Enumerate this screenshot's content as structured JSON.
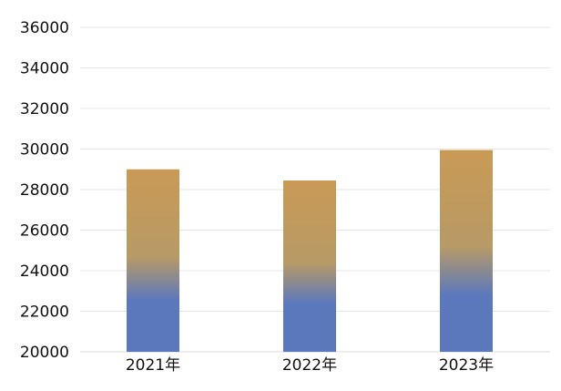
{
  "chart_data": {
    "type": "bar",
    "categories": [
      "2021年",
      "2022年",
      "2023年"
    ],
    "values": [
      29000,
      28450,
      29950
    ],
    "title": "",
    "xlabel": "",
    "ylabel": "",
    "ylim": [
      20000,
      36000
    ],
    "yticks": [
      20000,
      22000,
      24000,
      26000,
      28000,
      30000,
      32000,
      34000,
      36000
    ],
    "grid": true,
    "legend": "none",
    "bar_gradient": {
      "top_color": "#c99a55",
      "mid_color": "#b79a66",
      "bottom_color": "#5b78bd"
    }
  }
}
